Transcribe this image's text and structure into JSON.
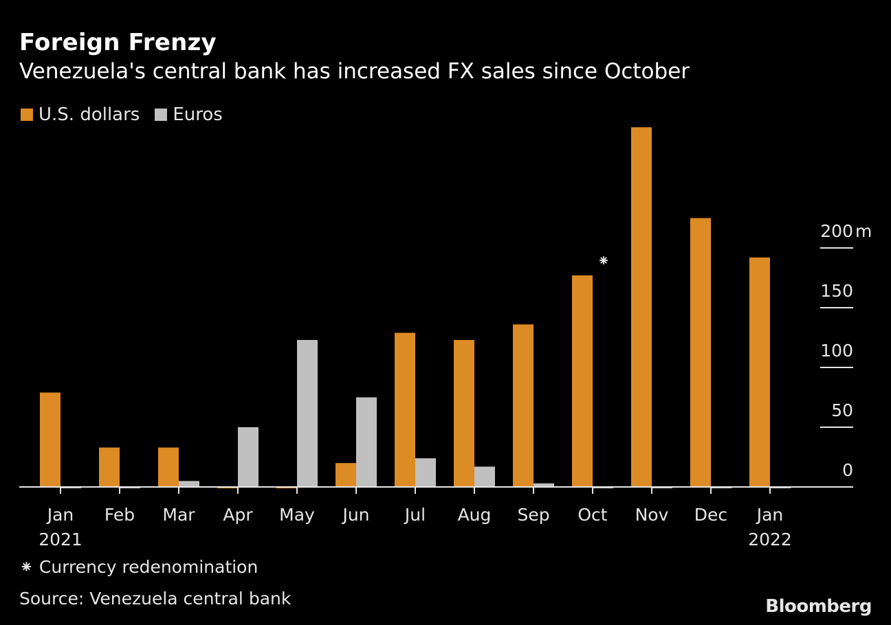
{
  "chart_data": {
    "type": "bar",
    "title": "Foreign Frenzy",
    "subtitle": "Venezuela's central bank has increased FX sales since October",
    "categories": [
      "Jan",
      "Feb",
      "Mar",
      "Apr",
      "May",
      "Jun",
      "Jul",
      "Aug",
      "Sep",
      "Oct",
      "Nov",
      "Dec",
      "Jan"
    ],
    "category_years": [
      "2021",
      "",
      "",
      "",
      "",
      "",
      "",
      "",
      "",
      "",
      "",
      "",
      "2022"
    ],
    "series": [
      {
        "name": "U.S. dollars",
        "color": "#dd8b24",
        "values": [
          79,
          33,
          33,
          0,
          0,
          20,
          129,
          123,
          136,
          177,
          301,
          225,
          192
        ]
      },
      {
        "name": "Euros",
        "color": "#c0c0c0",
        "values": [
          0,
          0,
          5,
          50,
          123,
          75,
          24,
          17,
          3,
          0,
          0,
          0,
          0
        ]
      }
    ],
    "ylim": [
      0,
      300
    ],
    "y_ticks": [
      "0",
      "50",
      "100",
      "150",
      "200m"
    ],
    "y_tick_values": [
      0,
      50,
      100,
      150,
      200
    ],
    "y_axis_side": "right",
    "legend_placement": "top-left",
    "annotation": {
      "category_index": 9,
      "symbol": "⁕"
    },
    "grid": false
  },
  "footnote": "⁕ Currency redenomination",
  "source": "Source: Venezuela central bank",
  "logo": "Bloomberg"
}
